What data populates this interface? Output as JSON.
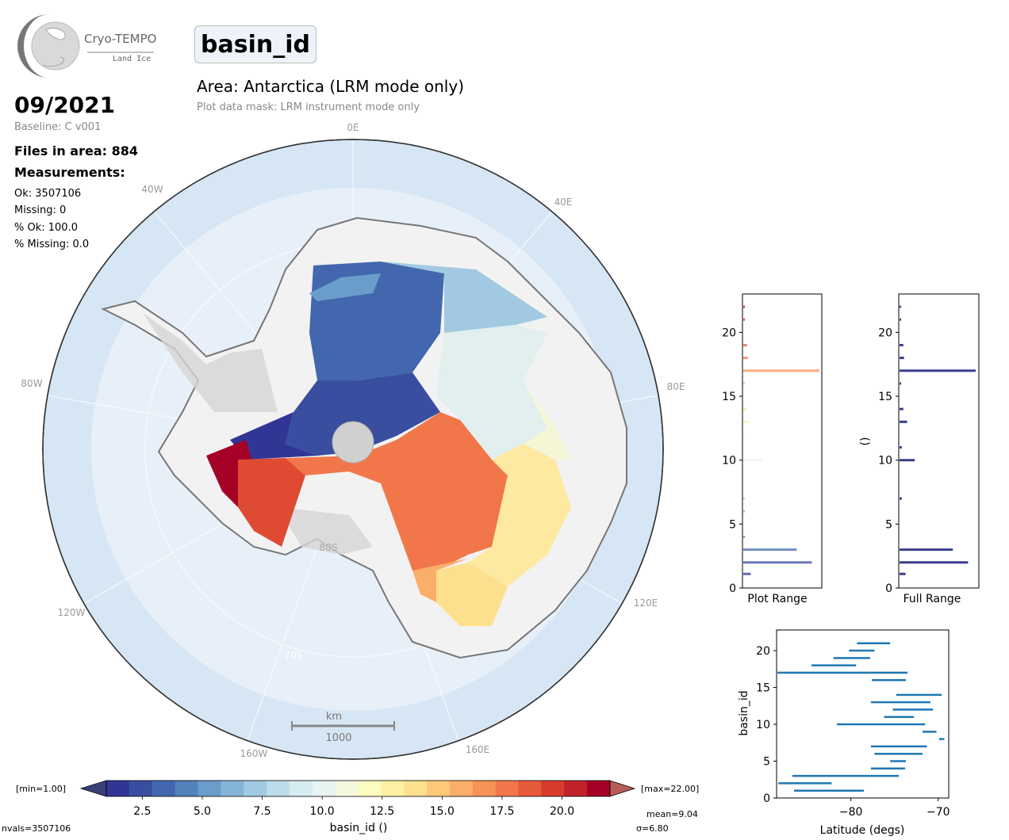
{
  "logo": {
    "line1": "Cryo-TEMPO",
    "line2": "Land Ice"
  },
  "parameter": "basin_id",
  "area_title": "Area: Antarctica (LRM mode only)",
  "mask_note": "Plot data mask: LRM instrument mode only",
  "date": "09/2021",
  "baseline": "Baseline: C v001",
  "files_in_area": "Files in area: 884",
  "measurements_title": "Measurements:",
  "stats": {
    "ok": "Ok: 3507106",
    "missing": "Missing: 0",
    "pct_ok": "% Ok: 100.0",
    "pct_missing": "% Missing: 0.0"
  },
  "map": {
    "lon_labels": [
      "0E",
      "40E",
      "80E",
      "120E",
      "160E",
      "160W",
      "120W",
      "80W",
      "40W"
    ],
    "lat_labels": [
      "80S",
      "70S"
    ],
    "scalebar_unit": "km",
    "scalebar_value": "1000"
  },
  "colorbar": {
    "min_label": "[min=1.00]",
    "max_label": "[max=22.00]",
    "ticks": [
      "2.5",
      "5.0",
      "7.5",
      "10.0",
      "12.5",
      "15.0",
      "17.5",
      "20.0"
    ],
    "label": "basin_id ()",
    "mean": "mean=9.04",
    "sigma": "σ=6.80",
    "nvals": "nvals=3507106",
    "colors": [
      "#313695",
      "#3a4ea0",
      "#4367ae",
      "#5281bb",
      "#6a9dca",
      "#84b5d7",
      "#a1c9e1",
      "#bcdcea",
      "#d4ebef",
      "#e7f4f1",
      "#f4f9de",
      "#fdfdbf",
      "#fdefa3",
      "#fde08d",
      "#fdc879",
      "#fbae69",
      "#f79356",
      "#f1774a",
      "#e55a3b",
      "#d63d2e",
      "#bf2229",
      "#a50026"
    ]
  },
  "hist_plot": {
    "xlabel": "Plot Range",
    "yticks": [
      "0",
      "5",
      "10",
      "15",
      "20"
    ]
  },
  "hist_full": {
    "xlabel": "Full Range",
    "ylabel": "()",
    "yticks": [
      "0",
      "5",
      "10",
      "15",
      "20"
    ]
  },
  "chart_data": [
    {
      "type": "bar",
      "name": "Plot Range",
      "orientation": "horizontal",
      "ylim": [
        0,
        23
      ],
      "bins": [
        {
          "y": 1.1,
          "count": 0.1
        },
        {
          "y": 2.0,
          "count": 0.9
        },
        {
          "y": 3.0,
          "count": 0.7
        },
        {
          "y": 4.0,
          "count": 0.01
        },
        {
          "y": 6.0,
          "count": 0.02
        },
        {
          "y": 7.0,
          "count": 0.02
        },
        {
          "y": 10.0,
          "count": 0.25
        },
        {
          "y": 12.0,
          "count": 0.01
        },
        {
          "y": 13.0,
          "count": 0.07
        },
        {
          "y": 14.0,
          "count": 0.04
        },
        {
          "y": 16.0,
          "count": 0.01
        },
        {
          "y": 17.0,
          "count": 1.0
        },
        {
          "y": 18.0,
          "count": 0.06
        },
        {
          "y": 19.0,
          "count": 0.05
        },
        {
          "y": 21.0,
          "count": 0.01
        },
        {
          "y": 22.0,
          "count": 0.01
        }
      ]
    },
    {
      "type": "bar",
      "name": "Full Range",
      "orientation": "horizontal",
      "ylabel": "()",
      "ylim": [
        0,
        23
      ],
      "bins": [
        {
          "y": 1.1,
          "count": 0.08
        },
        {
          "y": 2.0,
          "count": 0.9
        },
        {
          "y": 3.0,
          "count": 0.7
        },
        {
          "y": 7.0,
          "count": 0.03
        },
        {
          "y": 10.0,
          "count": 0.2
        },
        {
          "y": 11.0,
          "count": 0.03
        },
        {
          "y": 13.0,
          "count": 0.1
        },
        {
          "y": 14.0,
          "count": 0.05
        },
        {
          "y": 16.0,
          "count": 0.01
        },
        {
          "y": 17.0,
          "count": 1.0
        },
        {
          "y": 18.0,
          "count": 0.06
        },
        {
          "y": 19.0,
          "count": 0.05
        },
        {
          "y": 21.0,
          "count": 0.02
        },
        {
          "y": 22.0,
          "count": 0.02
        }
      ]
    },
    {
      "type": "range",
      "xlabel": "Latitude (degs)",
      "ylabel": "basin_id",
      "xlim": [
        -88.5,
        -68.8
      ],
      "ylim": [
        0,
        22.8
      ],
      "xticks": [
        "−80",
        "−70"
      ],
      "yticks": [
        "0",
        "5",
        "10",
        "15",
        "20"
      ],
      "ranges": [
        {
          "id": 1,
          "lat_min": -86.5,
          "lat_max": -78.5
        },
        {
          "id": 2,
          "lat_min": -88.3,
          "lat_max": -82.2
        },
        {
          "id": 3,
          "lat_min": -86.7,
          "lat_max": -74.5
        },
        {
          "id": 4,
          "lat_min": -77.7,
          "lat_max": -73.8
        },
        {
          "id": 5,
          "lat_min": -75.5,
          "lat_max": -73.7
        },
        {
          "id": 6,
          "lat_min": -77.3,
          "lat_max": -71.8
        },
        {
          "id": 7,
          "lat_min": -77.7,
          "lat_max": -71.3
        },
        {
          "id": 8,
          "lat_min": -69.9,
          "lat_max": -69.3
        },
        {
          "id": 9,
          "lat_min": -71.8,
          "lat_max": -70.2
        },
        {
          "id": 10,
          "lat_min": -81.6,
          "lat_max": -71.5
        },
        {
          "id": 11,
          "lat_min": -76.2,
          "lat_max": -72.8
        },
        {
          "id": 12,
          "lat_min": -75.2,
          "lat_max": -70.6
        },
        {
          "id": 13,
          "lat_min": -77.7,
          "lat_max": -70.9
        },
        {
          "id": 14,
          "lat_min": -74.8,
          "lat_max": -69.6
        },
        {
          "id": 16,
          "lat_min": -77.6,
          "lat_max": -73.7
        },
        {
          "id": 17,
          "lat_min": -88.4,
          "lat_max": -73.5
        },
        {
          "id": 18,
          "lat_min": -84.5,
          "lat_max": -79.4
        },
        {
          "id": 19,
          "lat_min": -82.0,
          "lat_max": -77.8
        },
        {
          "id": 20,
          "lat_min": -80.2,
          "lat_max": -77.3
        },
        {
          "id": 21,
          "lat_min": -79.3,
          "lat_max": -75.5
        }
      ]
    }
  ]
}
